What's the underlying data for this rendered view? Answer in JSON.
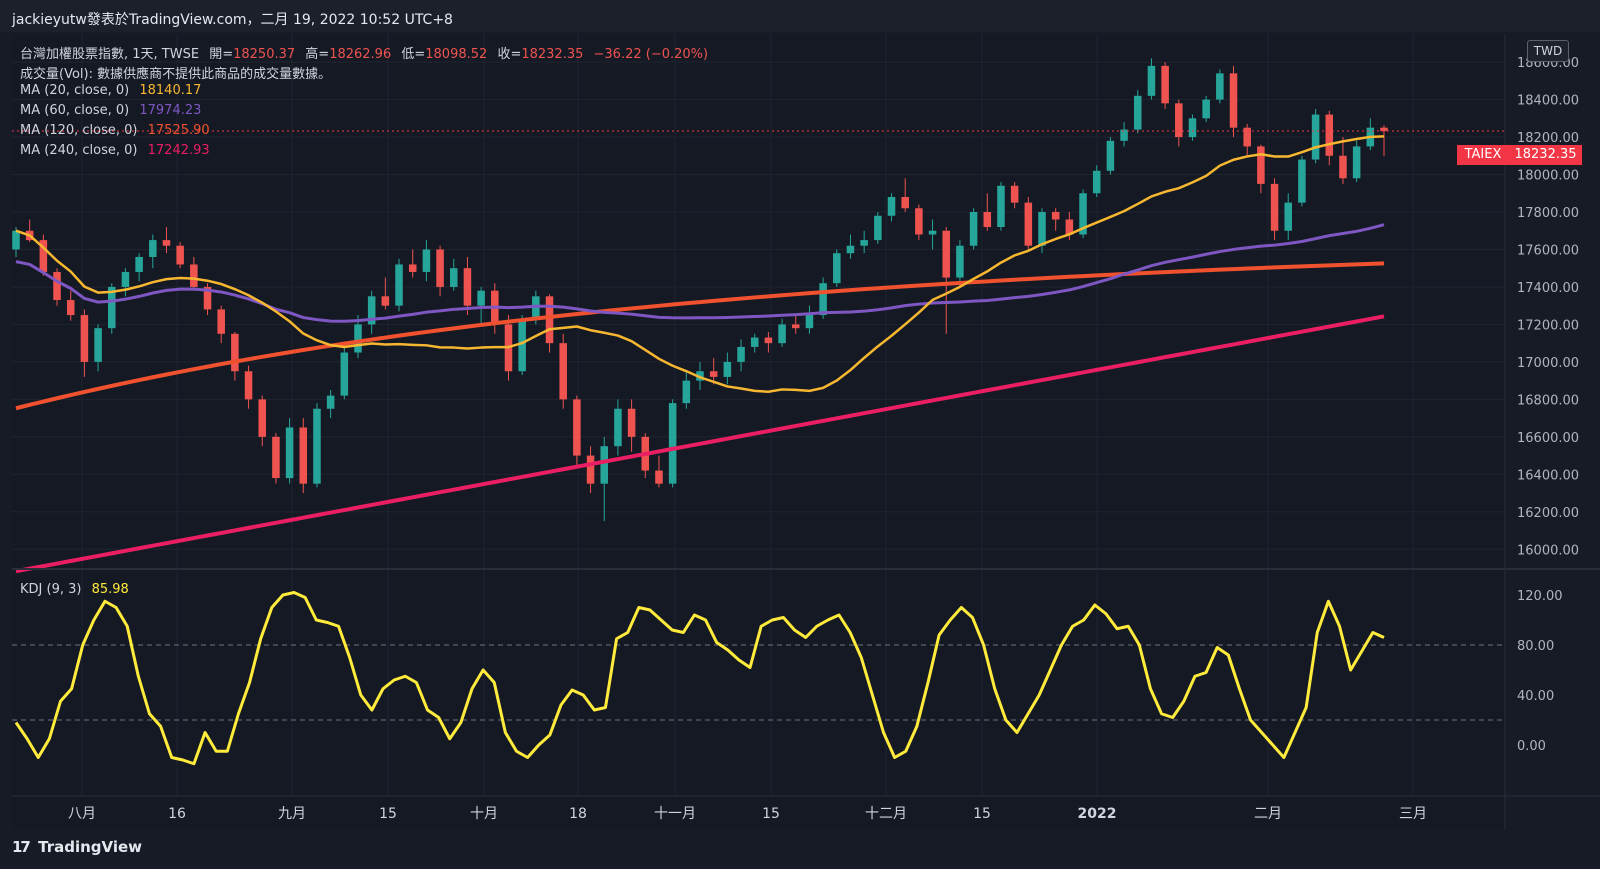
{
  "header": {
    "publish_line": "jackieyutw發表於TradingView.com，二月 19, 2022 10:52 UTC+8"
  },
  "legend": {
    "symbol": "台灣加權股票指數, 1天, TWSE",
    "open_label": "開=",
    "open": "18250.37",
    "high_label": "高=",
    "high": "18262.96",
    "low_label": "低=",
    "low": "18098.52",
    "close_label": "收=",
    "close": "18232.35",
    "change": "−36.22 (−0.20%)",
    "volume_line": "成交量(Vol): 數據供應商不提供此商品的成交量數據。",
    "ma": [
      {
        "label": "MA (20, close, 0)",
        "value": "18140.17",
        "color": "#f7b731"
      },
      {
        "label": "MA (60, close, 0)",
        "value": "17974.23",
        "color": "#7e57c2"
      },
      {
        "label": "MA (120, close, 0)",
        "value": "17525.90",
        "color": "#f0512f"
      },
      {
        "label": "MA (240, close, 0)",
        "value": "17242.93",
        "color": "#e91e63"
      }
    ],
    "kdj_label": "KDJ (9, 3)",
    "kdj_value": "85.98"
  },
  "price_axis": {
    "currency_button": "TWD",
    "ticks": [
      "18600.00",
      "18400.00",
      "18200.00",
      "18000.00",
      "17800.00",
      "17600.00",
      "17400.00",
      "17200.00",
      "17000.00",
      "16800.00",
      "16600.00",
      "16400.00",
      "16200.00",
      "16000.00"
    ],
    "symbol_tag": "TAIEX",
    "last_price": "18232.35"
  },
  "kdj_axis": {
    "ticks": [
      "120.00",
      "80.00",
      "40.00",
      "0.00"
    ]
  },
  "time_axis": {
    "labels": [
      "八月",
      "16",
      "九月",
      "15",
      "十月",
      "18",
      "十一月",
      "15",
      "十二月",
      "15",
      "2022",
      "二月",
      "三月"
    ]
  },
  "footer": {
    "brand": "TradingView",
    "logo": "17"
  },
  "colors": {
    "up": "#26a69a",
    "down": "#ef5350",
    "kdj_line": "#ffeb3b",
    "band_green": "#163820",
    "band_red": "#4e181e",
    "last_price_bg": "#f23645"
  },
  "chart_data": [
    {
      "type": "candlestick",
      "title": "台灣加權股票指數, 1天, TWSE",
      "ylim": [
        15900,
        18750
      ],
      "y_ticks": [
        16000,
        16200,
        16400,
        16600,
        16800,
        17000,
        17200,
        17400,
        17600,
        17800,
        18000,
        18200,
        18400,
        18600
      ],
      "last_close": 18232.35,
      "ohlc_approx": [
        [
          17600,
          17720,
          17560,
          17700
        ],
        [
          17700,
          17760,
          17640,
          17650
        ],
        [
          17650,
          17680,
          17460,
          17480
        ],
        [
          17480,
          17500,
          17300,
          17330
        ],
        [
          17330,
          17380,
          17220,
          17250
        ],
        [
          17250,
          17280,
          16920,
          17000
        ],
        [
          17000,
          17200,
          16950,
          17180
        ],
        [
          17180,
          17420,
          17150,
          17400
        ],
        [
          17400,
          17500,
          17350,
          17480
        ],
        [
          17480,
          17580,
          17430,
          17560
        ],
        [
          17560,
          17680,
          17500,
          17650
        ],
        [
          17650,
          17720,
          17580,
          17620
        ],
        [
          17620,
          17640,
          17500,
          17520
        ],
        [
          17520,
          17560,
          17380,
          17400
        ],
        [
          17400,
          17420,
          17250,
          17280
        ],
        [
          17280,
          17300,
          17100,
          17150
        ],
        [
          17150,
          17160,
          16900,
          16950
        ],
        [
          16950,
          16980,
          16750,
          16800
        ],
        [
          16800,
          16820,
          16550,
          16600
        ],
        [
          16600,
          16620,
          16350,
          16380
        ],
        [
          16380,
          16700,
          16350,
          16650
        ],
        [
          16650,
          16700,
          16300,
          16350
        ],
        [
          16350,
          16780,
          16330,
          16750
        ],
        [
          16750,
          16850,
          16700,
          16820
        ],
        [
          16820,
          17100,
          16800,
          17050
        ],
        [
          17050,
          17250,
          17020,
          17200
        ],
        [
          17200,
          17380,
          17150,
          17350
        ],
        [
          17350,
          17450,
          17280,
          17300
        ],
        [
          17300,
          17550,
          17270,
          17520
        ],
        [
          17520,
          17600,
          17450,
          17480
        ],
        [
          17480,
          17650,
          17430,
          17600
        ],
        [
          17600,
          17620,
          17350,
          17400
        ],
        [
          17400,
          17550,
          17380,
          17500
        ],
        [
          17500,
          17560,
          17250,
          17300
        ],
        [
          17300,
          17400,
          17200,
          17380
        ],
        [
          17380,
          17420,
          17150,
          17200
        ],
        [
          17200,
          17250,
          16900,
          16950
        ],
        [
          16950,
          17250,
          16930,
          17230
        ],
        [
          17230,
          17380,
          17200,
          17350
        ],
        [
          17350,
          17360,
          17050,
          17100
        ],
        [
          17100,
          17150,
          16750,
          16800
        ],
        [
          16800,
          16820,
          16450,
          16500
        ],
        [
          16500,
          16550,
          16300,
          16350
        ],
        [
          16350,
          16600,
          16150,
          16550
        ],
        [
          16550,
          16800,
          16500,
          16750
        ],
        [
          16750,
          16800,
          16520,
          16600
        ],
        [
          16600,
          16620,
          16380,
          16420
        ],
        [
          16420,
          16500,
          16330,
          16350
        ],
        [
          16350,
          16800,
          16330,
          16780
        ],
        [
          16780,
          16950,
          16750,
          16900
        ],
        [
          16900,
          17000,
          16850,
          16950
        ],
        [
          16950,
          17020,
          16880,
          16920
        ],
        [
          16920,
          17050,
          16880,
          17000
        ],
        [
          17000,
          17120,
          16950,
          17080
        ],
        [
          17080,
          17150,
          17050,
          17130
        ],
        [
          17130,
          17160,
          17050,
          17100
        ],
        [
          17100,
          17230,
          17080,
          17200
        ],
        [
          17200,
          17260,
          17150,
          17180
        ],
        [
          17180,
          17300,
          17150,
          17250
        ],
        [
          17250,
          17450,
          17230,
          17420
        ],
        [
          17420,
          17600,
          17400,
          17580
        ],
        [
          17580,
          17680,
          17550,
          17620
        ],
        [
          17620,
          17700,
          17580,
          17650
        ],
        [
          17650,
          17800,
          17630,
          17780
        ],
        [
          17780,
          17900,
          17750,
          17880
        ],
        [
          17880,
          17980,
          17800,
          17820
        ],
        [
          17820,
          17840,
          17650,
          17680
        ],
        [
          17680,
          17760,
          17600,
          17700
        ],
        [
          17700,
          17720,
          17150,
          17450
        ],
        [
          17450,
          17650,
          17400,
          17620
        ],
        [
          17620,
          17820,
          17600,
          17800
        ],
        [
          17800,
          17900,
          17700,
          17720
        ],
        [
          17720,
          17960,
          17700,
          17940
        ],
        [
          17940,
          17960,
          17820,
          17850
        ],
        [
          17850,
          17880,
          17600,
          17620
        ],
        [
          17620,
          17820,
          17580,
          17800
        ],
        [
          17800,
          17820,
          17700,
          17760
        ],
        [
          17760,
          17800,
          17650,
          17680
        ],
        [
          17680,
          17920,
          17660,
          17900
        ],
        [
          17900,
          18050,
          17880,
          18020
        ],
        [
          18020,
          18200,
          18000,
          18180
        ],
        [
          18180,
          18280,
          18150,
          18240
        ],
        [
          18240,
          18450,
          18220,
          18420
        ],
        [
          18420,
          18620,
          18400,
          18580
        ],
        [
          18580,
          18600,
          18350,
          18380
        ],
        [
          18380,
          18400,
          18150,
          18200
        ],
        [
          18200,
          18320,
          18180,
          18300
        ],
        [
          18300,
          18420,
          18280,
          18400
        ],
        [
          18400,
          18560,
          18380,
          18540
        ],
        [
          18540,
          18580,
          18200,
          18250
        ],
        [
          18250,
          18270,
          18100,
          18150
        ],
        [
          18150,
          18160,
          17900,
          17950
        ],
        [
          17950,
          17980,
          17650,
          17700
        ],
        [
          17700,
          17900,
          17650,
          17850
        ],
        [
          17850,
          18100,
          17830,
          18080
        ],
        [
          18080,
          18350,
          18060,
          18320
        ],
        [
          18320,
          18340,
          18050,
          18100
        ],
        [
          18100,
          18200,
          17950,
          17980
        ],
        [
          17980,
          18180,
          17960,
          18150
        ],
        [
          18150,
          18300,
          18130,
          18250
        ],
        [
          18250,
          18263,
          18098,
          18232
        ]
      ],
      "series": [
        {
          "name": "MA (20, close, 0)",
          "last": 18140.17
        },
        {
          "name": "MA (60, close, 0)",
          "last": 17974.23
        },
        {
          "name": "MA (120, close, 0)",
          "last": 17525.9
        },
        {
          "name": "MA (240, close, 0)",
          "last": 17242.93
        }
      ]
    },
    {
      "type": "line",
      "title": "KDJ (9, 3)",
      "ylim": [
        -40,
        140
      ],
      "y_ticks": [
        0,
        40,
        80,
        120
      ],
      "reference_lines": [
        20,
        80
      ],
      "last": 85.98,
      "values_approx": [
        18,
        5,
        -10,
        5,
        35,
        45,
        80,
        100,
        115,
        110,
        95,
        55,
        25,
        15,
        -10,
        -12,
        -15,
        10,
        -5,
        -5,
        25,
        50,
        85,
        110,
        120,
        122,
        118,
        100,
        98,
        95,
        70,
        40,
        28,
        45,
        52,
        55,
        50,
        28,
        22,
        5,
        18,
        45,
        60,
        50,
        10,
        -5,
        -10,
        0,
        8,
        32,
        44,
        40,
        28,
        30,
        85,
        90,
        110,
        108,
        100,
        92,
        90,
        104,
        100,
        82,
        76,
        68,
        62,
        95,
        100,
        102,
        92,
        86,
        95,
        100,
        104,
        90,
        70,
        40,
        10,
        -10,
        -5,
        15,
        50,
        88,
        100,
        110,
        102,
        80,
        45,
        20,
        10,
        25,
        40,
        60,
        80,
        95,
        100,
        112,
        105,
        93,
        95,
        80,
        45,
        25,
        22,
        35,
        55,
        58,
        78,
        72,
        45,
        20,
        10,
        0,
        -10,
        10,
        30,
        90,
        115,
        95,
        60,
        75,
        90,
        86
      ]
    }
  ]
}
